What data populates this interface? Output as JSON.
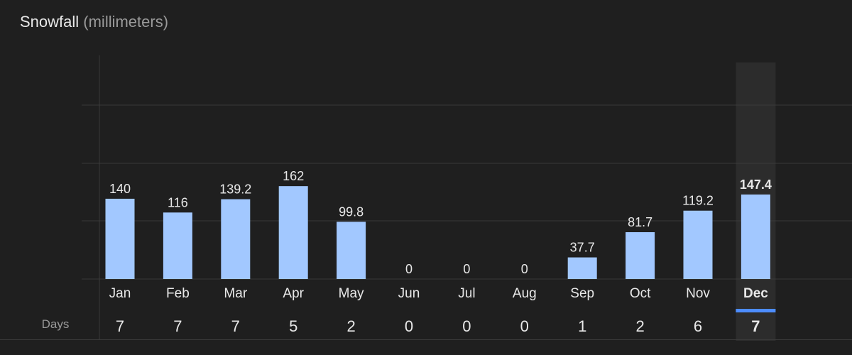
{
  "title": "Snowfall",
  "unit": "(millimeters)",
  "days_label": "Days",
  "selected_index": 11,
  "colors": {
    "bar": "#a2c8ff",
    "background": "#1f1f1f",
    "highlight": "#2c2c2c",
    "grid": "#3a3a3a",
    "accent": "#4d8dff",
    "text": "#e8e8e8",
    "muted": "#9a9a9a"
  },
  "chart_data": {
    "type": "bar",
    "title": "Snowfall",
    "ylabel": "(millimeters)",
    "categories": [
      "Jan",
      "Feb",
      "Mar",
      "Apr",
      "May",
      "Jun",
      "Jul",
      "Aug",
      "Sep",
      "Oct",
      "Nov",
      "Dec"
    ],
    "values": [
      140,
      116,
      139.2,
      162,
      99.8,
      0,
      0,
      0,
      37.7,
      81.7,
      119.2,
      147.4
    ],
    "value_labels": [
      "140",
      "116",
      "139.2",
      "162",
      "99.8",
      "0",
      "0",
      "0",
      "37.7",
      "81.7",
      "119.2",
      "147.4"
    ],
    "days": [
      7,
      7,
      7,
      5,
      2,
      0,
      0,
      0,
      1,
      2,
      6,
      7
    ],
    "ylim": [
      0,
      390
    ],
    "grid": true
  }
}
